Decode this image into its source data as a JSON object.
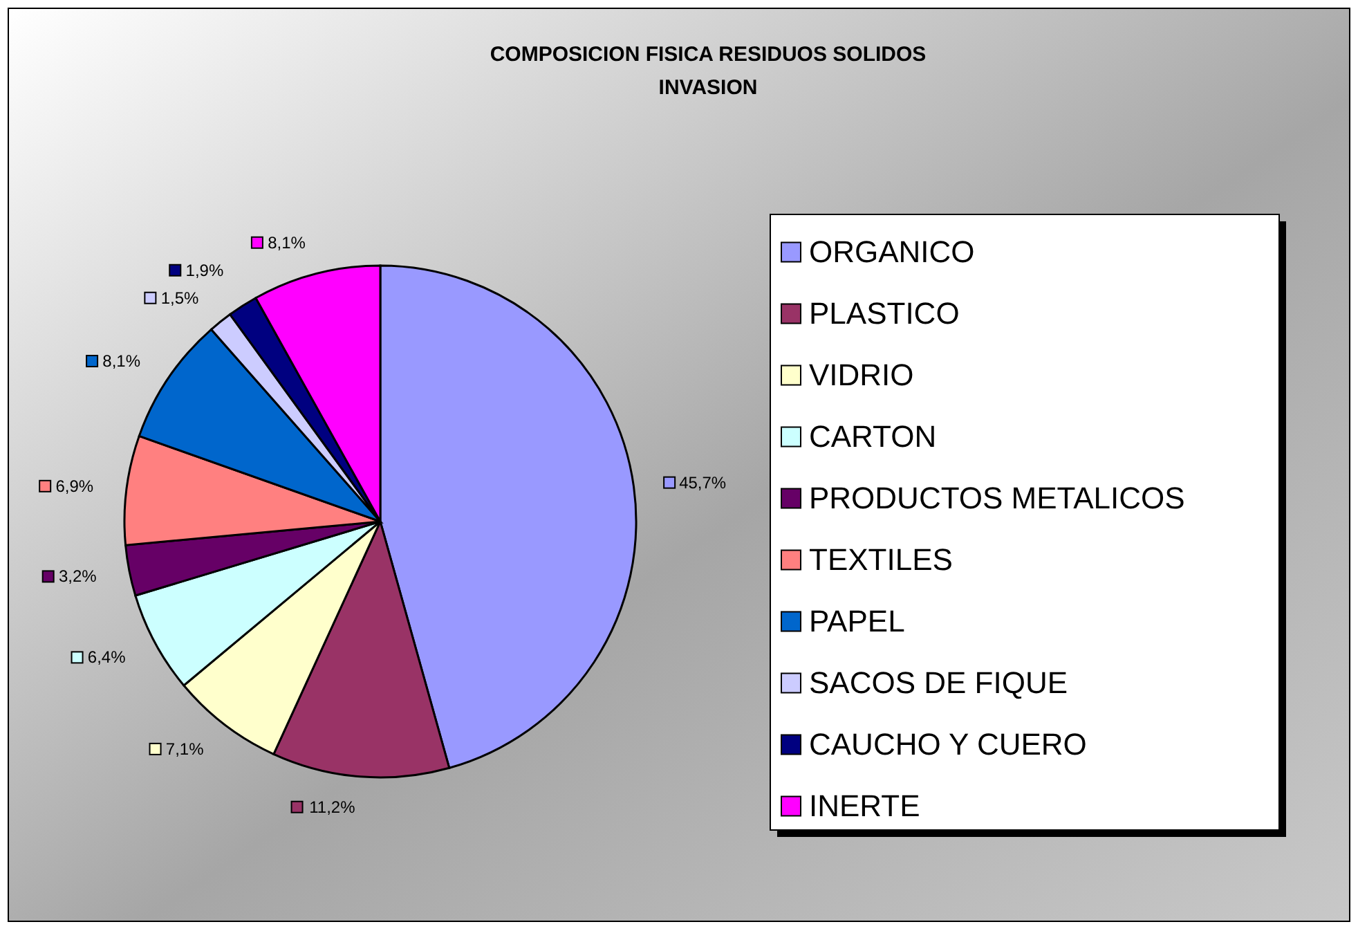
{
  "chart_data": {
    "type": "pie",
    "title": "COMPOSICION FISICA RESIDUOS SOLIDOS\nINVASION",
    "categories": [
      "ORGANICO",
      "PLASTICO",
      "VIDRIO",
      "CARTON",
      "PRODUCTOS METALICOS",
      "TEXTILES",
      "PAPEL",
      "SACOS DE FIQUE",
      "CAUCHO Y CUERO",
      "INERTE"
    ],
    "values": [
      45.7,
      11.2,
      7.1,
      6.4,
      3.2,
      6.9,
      8.1,
      1.5,
      1.9,
      8.1
    ],
    "colors": [
      "#9999ff",
      "#993366",
      "#ffffcc",
      "#ccffff",
      "#660066",
      "#ff8080",
      "#0066cc",
      "#ccccff",
      "#000080",
      "#ff00ff"
    ],
    "value_labels": [
      "45,7%",
      "11,2%",
      "7,1%",
      "6,4%",
      "3,2%",
      "6,9%",
      "8,1%",
      "1,5%",
      "1,9%",
      "8,1%"
    ],
    "legend": "right"
  }
}
